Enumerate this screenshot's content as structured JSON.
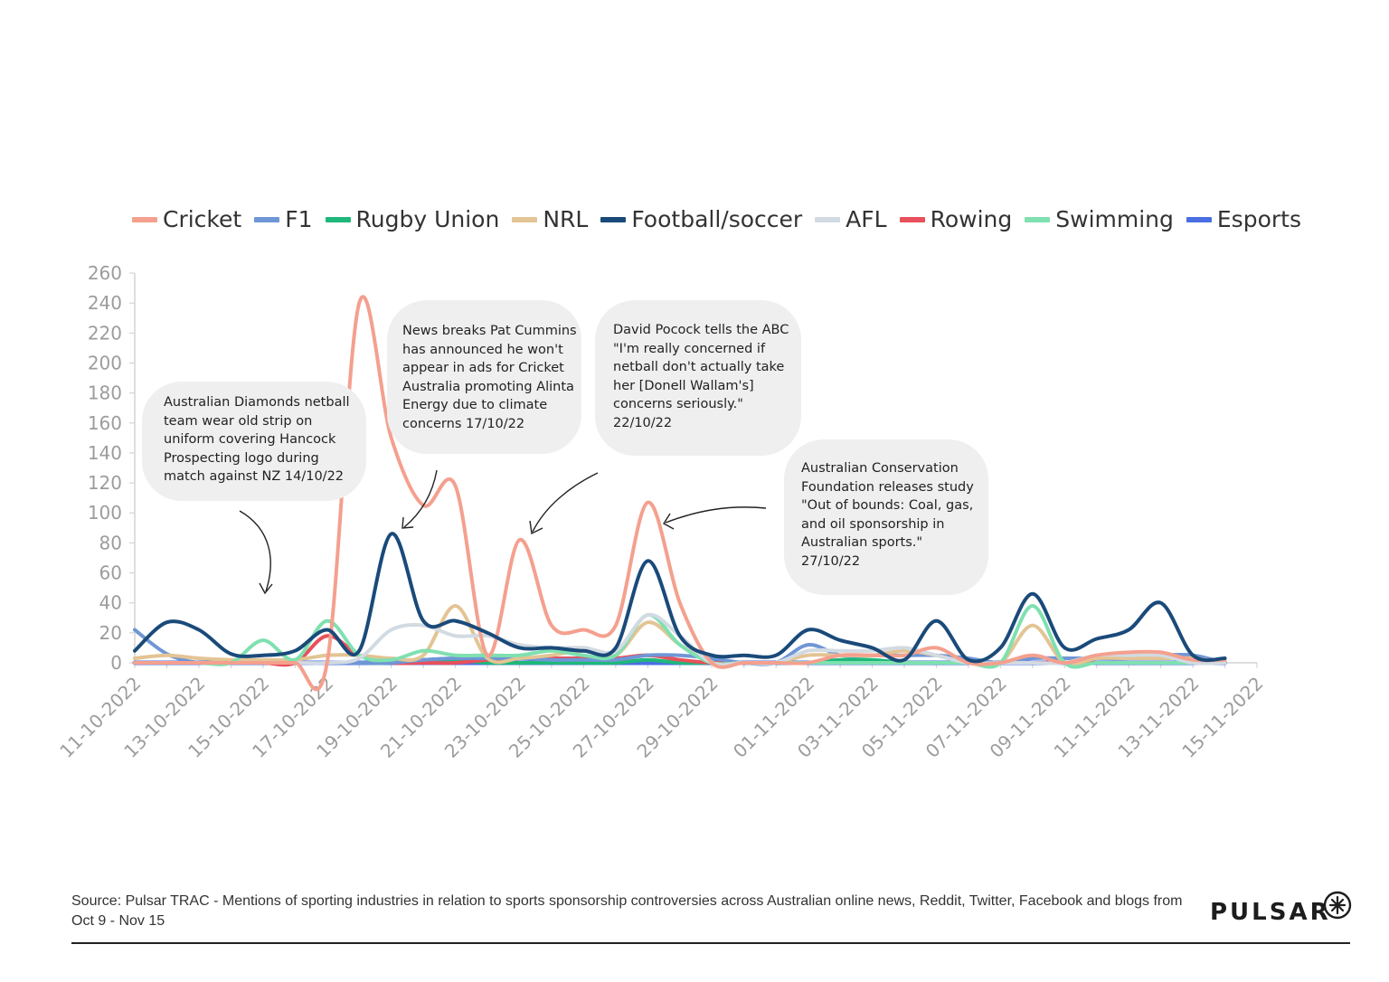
{
  "chart_data": {
    "type": "line",
    "x": [
      "11-10-2022",
      "12-10-2022",
      "13-10-2022",
      "14-10-2022",
      "15-10-2022",
      "16-10-2022",
      "17-10-2022",
      "18-10-2022",
      "19-10-2022",
      "20-10-2022",
      "21-10-2022",
      "22-10-2022",
      "23-10-2022",
      "24-10-2022",
      "25-10-2022",
      "26-10-2022",
      "27-10-2022",
      "28-10-2022",
      "29-10-2022",
      "30-10-2022",
      "31-10-2022",
      "01-11-2022",
      "02-11-2022",
      "03-11-2022",
      "04-11-2022",
      "05-11-2022",
      "06-11-2022",
      "07-11-2022",
      "08-11-2022",
      "09-11-2022",
      "10-11-2022",
      "11-11-2022",
      "12-11-2022",
      "13-11-2022",
      "14-11-2022",
      "15-11-2022"
    ],
    "xtick_labels": [
      "11-10-2022",
      "13-10-2022",
      "15-10-2022",
      "17-10-2022",
      "19-10-2022",
      "21-10-2022",
      "23-10-2022",
      "25-10-2022",
      "27-10-2022",
      "29-10-2022",
      "01-11-2022",
      "03-11-2022",
      "05-11-2022",
      "07-11-2022",
      "09-11-2022",
      "11-11-2022",
      "13-11-2022",
      "15-11-2022"
    ],
    "ylim": [
      0,
      260
    ],
    "yticks": [
      0,
      20,
      40,
      60,
      80,
      100,
      120,
      140,
      160,
      180,
      200,
      220,
      240,
      260
    ],
    "legend_position": "top",
    "series": [
      {
        "name": "Cricket",
        "color": "#f4a08e",
        "values": [
          0,
          0,
          0,
          0,
          0,
          0,
          0,
          240,
          150,
          105,
          118,
          5,
          82,
          25,
          22,
          25,
          107,
          40,
          0,
          0,
          0,
          0,
          5,
          5,
          5,
          10,
          0,
          0,
          5,
          0,
          5,
          7,
          7,
          2,
          2,
          null
        ]
      },
      {
        "name": "F1",
        "color": "#6f96d6",
        "values": [
          22,
          6,
          0,
          0,
          0,
          0,
          0,
          0,
          0,
          2,
          3,
          3,
          3,
          2,
          2,
          2,
          5,
          5,
          3,
          0,
          0,
          12,
          5,
          5,
          5,
          5,
          3,
          0,
          3,
          3,
          3,
          3,
          5,
          5,
          0,
          null
        ]
      },
      {
        "name": "Rugby Union",
        "color": "#1fb87a",
        "values": [
          0,
          0,
          0,
          0,
          0,
          0,
          0,
          0,
          0,
          2,
          2,
          0,
          0,
          0,
          0,
          0,
          2,
          0,
          0,
          0,
          0,
          0,
          2,
          2,
          0,
          0,
          0,
          0,
          0,
          0,
          0,
          0,
          0,
          0,
          0,
          null
        ]
      },
      {
        "name": "NRL",
        "color": "#e3c494",
        "values": [
          3,
          5,
          3,
          2,
          2,
          2,
          5,
          5,
          3,
          5,
          38,
          3,
          3,
          5,
          8,
          5,
          27,
          12,
          0,
          0,
          0,
          5,
          5,
          5,
          8,
          5,
          0,
          0,
          25,
          0,
          3,
          3,
          3,
          3,
          0,
          null
        ]
      },
      {
        "name": "Football/soccer",
        "color": "#1a4a7a",
        "values": [
          8,
          27,
          22,
          6,
          5,
          8,
          22,
          8,
          86,
          28,
          28,
          20,
          10,
          10,
          8,
          10,
          68,
          18,
          5,
          5,
          5,
          22,
          15,
          10,
          2,
          28,
          2,
          10,
          46,
          10,
          16,
          22,
          40,
          5,
          3,
          null
        ]
      },
      {
        "name": "AFL",
        "color": "#d2dae2",
        "values": [
          0,
          0,
          0,
          0,
          0,
          0,
          0,
          3,
          22,
          25,
          18,
          18,
          12,
          10,
          10,
          8,
          32,
          18,
          0,
          0,
          0,
          8,
          8,
          8,
          10,
          5,
          0,
          0,
          0,
          0,
          5,
          5,
          5,
          0,
          0,
          null
        ]
      },
      {
        "name": "Rowing",
        "color": "#e8505b",
        "values": [
          0,
          0,
          0,
          0,
          0,
          0,
          18,
          5,
          0,
          0,
          0,
          2,
          3,
          3,
          3,
          3,
          5,
          2,
          0,
          0,
          0,
          0,
          0,
          0,
          0,
          0,
          0,
          0,
          0,
          0,
          0,
          0,
          0,
          0,
          0,
          null
        ]
      },
      {
        "name": "Swimming",
        "color": "#7fe0b0",
        "values": [
          0,
          0,
          0,
          0,
          15,
          2,
          28,
          5,
          2,
          8,
          5,
          5,
          5,
          8,
          5,
          5,
          32,
          12,
          0,
          0,
          0,
          0,
          0,
          0,
          0,
          0,
          0,
          0,
          38,
          0,
          0,
          0,
          0,
          0,
          0,
          null
        ]
      },
      {
        "name": "Esports",
        "color": "#4a6fe3",
        "values": [
          0,
          0,
          0,
          0,
          0,
          0,
          0,
          0,
          0,
          0,
          0,
          0,
          0,
          0,
          0,
          0,
          0,
          0,
          0,
          0,
          0,
          0,
          0,
          0,
          0,
          0,
          0,
          0,
          0,
          0,
          0,
          0,
          0,
          0,
          0,
          null
        ]
      }
    ],
    "annotations": [
      {
        "text": "Australian Diamonds netball\nteam wear old strip on\nuniform covering Hancock\nProspecting logo during\nmatch against NZ 14/10/22"
      },
      {
        "text": "News breaks Pat Cummins\nhas announced he won't\nappear in ads for Cricket\nAustralia promoting Alinta\nEnergy due to climate\nconcerns 17/10/22"
      },
      {
        "text": "David Pocock tells the ABC\n\"I'm really concerned if\nnetball don't actually take\nher [Donell Wallam's]\nconcerns seriously.\"\n22/10/22"
      },
      {
        "text": "Australian Conservation\nFoundation releases study\n\"Out of bounds: Coal, gas,\nand oil sponsorship in\nAustralian sports.\"\n 27/10/22"
      }
    ]
  },
  "footer": {
    "source": "Source: Pulsar TRAC - Mentions of sporting industries in relation to sports sponsorship controversies across Australian online news, Reddit, Twitter, Facebook and blogs from Oct 9 - Nov 15",
    "brand": "PULSAR"
  }
}
